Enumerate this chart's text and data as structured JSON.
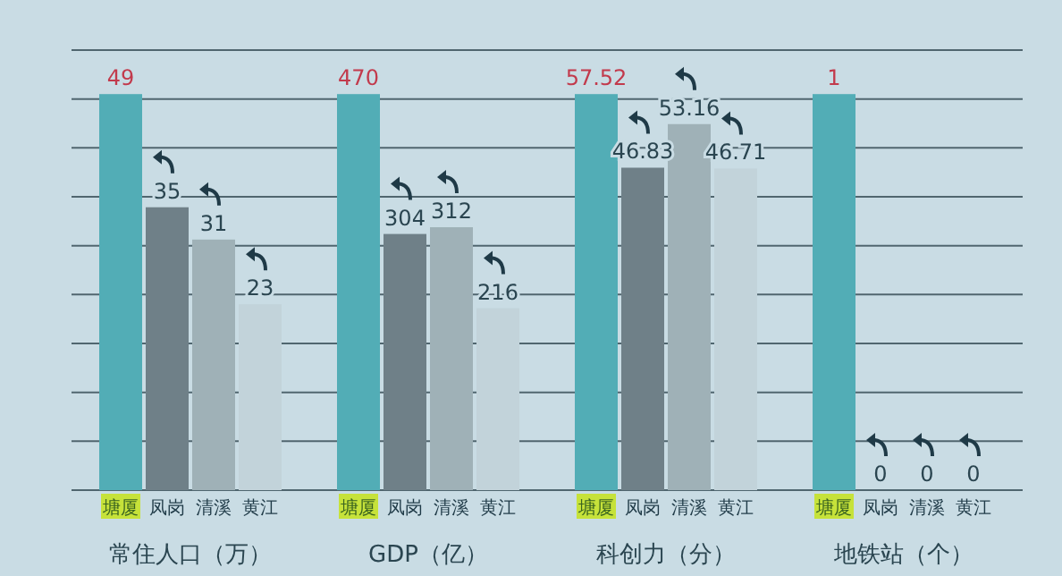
{
  "chart_data": [
    {
      "type": "bar",
      "xlabel": "常住人口（万）",
      "categories": [
        "塘厦",
        "凤岗",
        "清溪",
        "黄江"
      ],
      "values": [
        49,
        35,
        31,
        23
      ],
      "colors": [
        "#52adb6",
        "#6f8088",
        "#9fb1b7",
        "#c2d3da"
      ],
      "data_labels": true,
      "grid": true
    },
    {
      "type": "bar",
      "xlabel": "GDP（亿）",
      "categories": [
        "塘厦",
        "凤岗",
        "清溪",
        "黄江"
      ],
      "values": [
        470,
        304,
        312,
        216
      ],
      "colors": [
        "#52adb6",
        "#6f8088",
        "#9fb1b7",
        "#c2d3da"
      ],
      "data_labels": true,
      "grid": true
    },
    {
      "type": "bar",
      "xlabel": "科创力（分）",
      "categories": [
        "塘厦",
        "凤岗",
        "清溪",
        "黄江"
      ],
      "values": [
        57.52,
        46.83,
        53.16,
        46.71
      ],
      "colors": [
        "#52adb6",
        "#6f8088",
        "#9fb1b7",
        "#c2d3da"
      ],
      "data_labels": true,
      "grid": true
    },
    {
      "type": "bar",
      "xlabel": "地铁站（个）",
      "categories": [
        "塘厦",
        "凤岗",
        "清溪",
        "黄江"
      ],
      "values": [
        1,
        0,
        0,
        0
      ],
      "colors": [
        "#52adb6",
        "#6f8088",
        "#9fb1b7",
        "#c2d3da"
      ],
      "data_labels": true,
      "grid": true
    }
  ]
}
